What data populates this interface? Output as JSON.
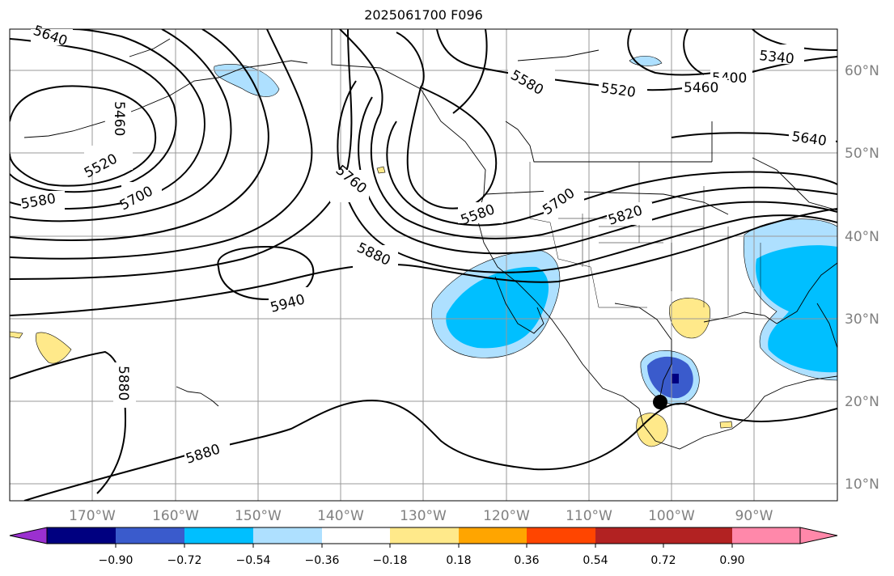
{
  "title": "2025061700 F096",
  "map": {
    "lon_labels": [
      "170°W",
      "160°W",
      "150°W",
      "140°W",
      "130°W",
      "120°W",
      "110°W",
      "100°W",
      "90°W"
    ],
    "lat_labels": [
      "10°N",
      "20°N",
      "30°N",
      "40°N",
      "50°N",
      "60°N"
    ],
    "contour_labels": [
      "5340",
      "5400",
      "5460",
      "5460",
      "5520",
      "5520",
      "5580",
      "5580",
      "5580",
      "5640",
      "5640",
      "5700",
      "5700",
      "5760",
      "5820",
      "5880",
      "5880",
      "5880",
      "5940"
    ]
  },
  "colorbar": {
    "colors": [
      "#9b30d0",
      "#000080",
      "#3a5bcc",
      "#00bfff",
      "#aee0ff",
      "#ffffff",
      "#ffe98a",
      "#ffa500",
      "#ff4500",
      "#b22222",
      "#ff88aa"
    ],
    "tick_labels": [
      "−0.90",
      "−0.72",
      "−0.54",
      "−0.36",
      "−0.18",
      "0.18",
      "0.36",
      "0.54",
      "0.72",
      "0.90"
    ]
  }
}
